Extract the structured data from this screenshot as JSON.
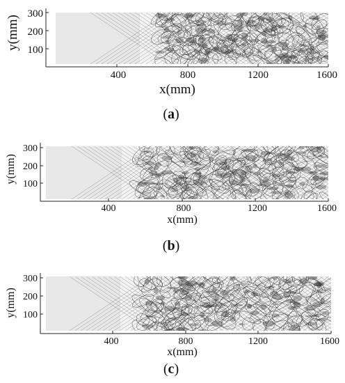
{
  "figure": {
    "panels": [
      {
        "caption_letter": "a",
        "xlabel": "x(mm)",
        "ylabel": "y(mm)",
        "x_ticks": [
          "400",
          "800",
          "1200",
          "1600"
        ],
        "y_ticks": [
          "300",
          "200",
          "100"
        ]
      },
      {
        "caption_letter": "b",
        "xlabel": "x(mm)",
        "ylabel": "y(mm)",
        "x_ticks": [
          "400",
          "800",
          "1200",
          "1600"
        ],
        "y_ticks": [
          "300",
          "200",
          "100"
        ]
      },
      {
        "caption_letter": "c",
        "xlabel": "x(mm)",
        "ylabel": "y(mm)",
        "x_ticks": [
          "400",
          "800",
          "1200",
          "1600"
        ],
        "y_ticks": [
          "300",
          "200",
          "100"
        ]
      }
    ]
  },
  "chart_data": [
    {
      "type": "heatmap",
      "xlim": [
        0,
        1600
      ],
      "ylim": [
        0,
        300
      ],
      "xlabel": "x(mm)",
      "ylabel": "y(mm)"
    },
    {
      "type": "heatmap",
      "xlim": [
        0,
        1600
      ],
      "ylim": [
        0,
        300
      ],
      "xlabel": "x(mm)",
      "ylabel": "y(mm)"
    },
    {
      "type": "heatmap",
      "xlim": [
        0,
        1600
      ],
      "ylim": [
        0,
        300
      ],
      "xlabel": "x(mm)",
      "ylabel": "y(mm)"
    }
  ]
}
